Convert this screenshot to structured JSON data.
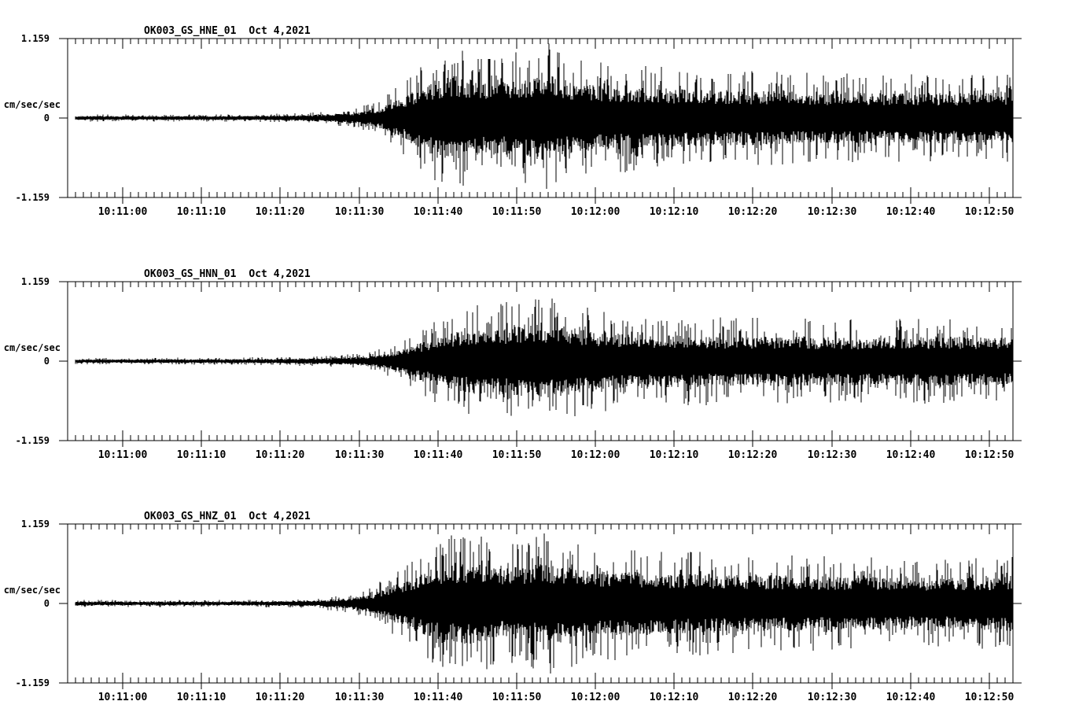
{
  "figure": {
    "background": "#ffffff",
    "ink": "#000000",
    "description": "Three-component strong-motion accelerogram record, station OK003"
  },
  "panels": [
    {
      "title": "OK003_GS_HNE_01",
      "date": "Oct 4,2021",
      "channel": "HNE"
    },
    {
      "title": "OK003_GS_HNN_01",
      "date": "Oct 4,2021",
      "channel": "HNN"
    },
    {
      "title": "OK003_GS_HNZ_01",
      "date": "Oct 4,2021",
      "channel": "HNZ"
    }
  ],
  "y_axis": {
    "max_label": "1.159",
    "zero_label": "0",
    "min_label": "-1.159",
    "unit": "cm/sec/sec",
    "max_value": 1.159,
    "min_value": -1.159
  },
  "chart_data": {
    "type": "line",
    "subtype": "seismogram-min-max-trace",
    "title": "OK003_GS HNE/HNN/HNZ accelerograms, Oct 4,2021",
    "ylabel": "cm/sec/sec",
    "ylim": [
      -1.159,
      1.159
    ],
    "x_window": [
      "10:10:53",
      "10:12:53"
    ],
    "x_window_duration_s": 120,
    "x_major_tick_interval_s": 10,
    "x_minor_tick_interval_s": 1,
    "x_first_major_tick_offset_s": 7,
    "grid": "off",
    "legend": "none",
    "x_major_ticks": [
      "10:11:00",
      "10:11:10",
      "10:11:20",
      "10:11:30",
      "10:11:40",
      "10:11:50",
      "10:12:00",
      "10:12:10",
      "10:12:20",
      "10:12:30",
      "10:12:40",
      "10:12:50"
    ],
    "series": [
      {
        "name": "OK003_GS_HNE_01",
        "envelope_t_s": [
          0,
          20,
          28,
          33,
          37,
          40,
          43,
          46,
          49,
          52,
          55,
          58,
          61,
          64,
          68,
          75,
          85,
          100,
          110,
          120
        ],
        "envelope_amp": [
          0.05,
          0.05,
          0.065,
          0.09,
          0.15,
          0.28,
          0.55,
          0.85,
          1.05,
          0.9,
          0.85,
          0.95,
          1.05,
          0.85,
          0.78,
          0.72,
          0.66,
          0.62,
          0.6,
          0.62
        ]
      },
      {
        "name": "OK003_GS_HNN_01",
        "envelope_t_s": [
          0,
          20,
          28,
          34,
          38,
          41,
          44,
          47,
          50,
          53,
          57,
          60,
          63,
          66,
          70,
          78,
          88,
          100,
          110,
          120
        ],
        "envelope_amp": [
          0.045,
          0.05,
          0.06,
          0.08,
          0.12,
          0.22,
          0.4,
          0.6,
          0.75,
          0.8,
          0.85,
          0.9,
          0.85,
          0.75,
          0.68,
          0.62,
          0.6,
          0.58,
          0.6,
          0.58
        ]
      },
      {
        "name": "OK003_GS_HNZ_01",
        "envelope_t_s": [
          0,
          20,
          27,
          32,
          36,
          39,
          42,
          45,
          48,
          51,
          55,
          58,
          61,
          64,
          68,
          75,
          85,
          100,
          110,
          120
        ],
        "envelope_amp": [
          0.05,
          0.05,
          0.06,
          0.08,
          0.13,
          0.25,
          0.5,
          0.75,
          0.95,
          1.0,
          0.85,
          0.9,
          1.0,
          0.88,
          0.8,
          0.75,
          0.7,
          0.65,
          0.62,
          0.65
        ]
      }
    ],
    "note": "envelope_amp = approximate peak-spike envelope in cm/sec/sec at envelope_t_s seconds after 10:10:53; trace drawn as per-pixel min/max vertical lines"
  }
}
